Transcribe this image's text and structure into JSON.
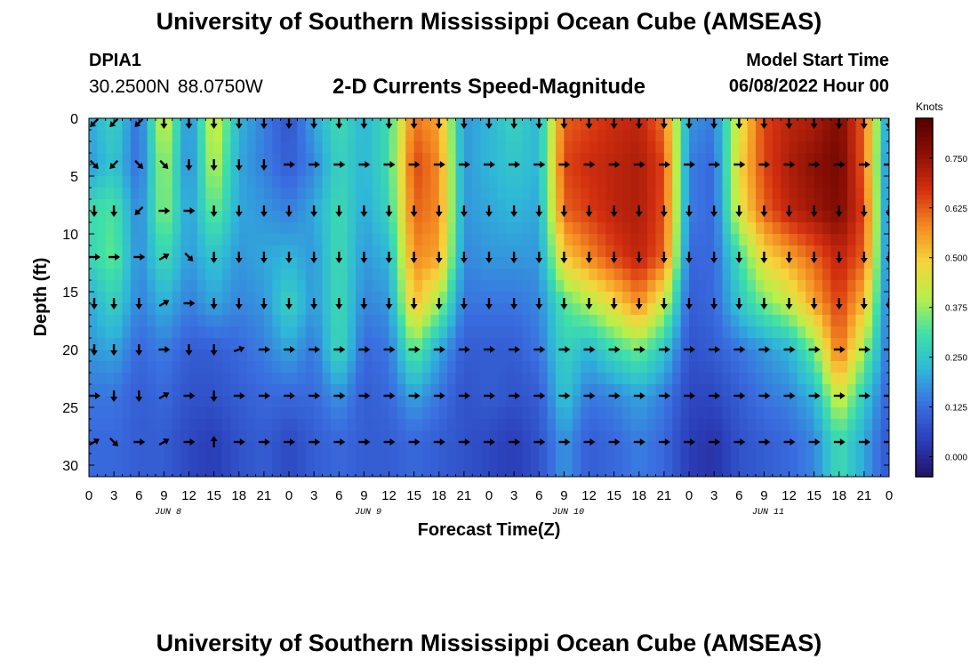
{
  "header": {
    "title": "University of Southern Mississippi Ocean Cube (AMSEAS)",
    "station_id": "DPIA1",
    "station_coords": "30.2500N  88.0750W",
    "subtitle": "2-D Currents Speed-Magnitude",
    "model_start_label": "Model Start Time",
    "model_start_value": "06/08/2022 Hour 00"
  },
  "footer": {
    "title": "University of Southern Mississippi Ocean Cube (AMSEAS)"
  },
  "chart_data": {
    "type": "heatmap",
    "title": "2-D Currents Speed-Magnitude",
    "xlabel": "Forecast Time(Z)",
    "ylabel": "Depth (ft)",
    "x_hours": [
      0,
      3,
      6,
      9,
      12,
      15,
      18,
      21,
      24,
      27,
      30,
      33,
      36,
      39,
      42,
      45,
      48,
      51,
      54,
      57,
      60,
      63,
      66,
      69,
      72,
      75,
      78,
      81,
      84,
      87,
      90,
      93,
      96
    ],
    "x_tick_labels": [
      "0",
      "3",
      "6",
      "9",
      "12",
      "15",
      "18",
      "21",
      "0",
      "3",
      "6",
      "9",
      "12",
      "15",
      "18",
      "21",
      "0",
      "3",
      "6",
      "9",
      "12",
      "15",
      "18",
      "21",
      "0",
      "3",
      "6",
      "9",
      "12",
      "15",
      "18",
      "21",
      "0"
    ],
    "day_labels": [
      {
        "label": "JUN 8",
        "hour": 9.5
      },
      {
        "label": "JUN 9",
        "hour": 33.5
      },
      {
        "label": "JUN 10",
        "hour": 57.5
      },
      {
        "label": "JUN 11",
        "hour": 81.5
      }
    ],
    "depths_ft": [
      0,
      4,
      8,
      12,
      16,
      20,
      24,
      28
    ],
    "y_tick_labels": [
      "0",
      "5",
      "10",
      "15",
      "20",
      "25",
      "30"
    ],
    "y_ticks": [
      0,
      5,
      10,
      15,
      20,
      25,
      30
    ],
    "xlim": [
      0,
      96
    ],
    "ylim": [
      0,
      31
    ],
    "speed_knots": [
      [
        0.2,
        0.28,
        0.12,
        0.45,
        0.15,
        0.45,
        0.22,
        0.15,
        0.08,
        0.2,
        0.3,
        0.22,
        0.3,
        0.6,
        0.55,
        0.18,
        0.22,
        0.28,
        0.22,
        0.62,
        0.65,
        0.68,
        0.7,
        0.6,
        0.18,
        0.15,
        0.45,
        0.65,
        0.7,
        0.72,
        0.78,
        0.62,
        0.15
      ],
      [
        0.18,
        0.25,
        0.12,
        0.4,
        0.15,
        0.42,
        0.2,
        0.15,
        0.1,
        0.16,
        0.28,
        0.22,
        0.3,
        0.65,
        0.58,
        0.18,
        0.22,
        0.25,
        0.22,
        0.65,
        0.68,
        0.7,
        0.72,
        0.65,
        0.15,
        0.12,
        0.48,
        0.65,
        0.72,
        0.76,
        0.8,
        0.62,
        0.12
      ],
      [
        0.3,
        0.32,
        0.15,
        0.38,
        0.18,
        0.35,
        0.2,
        0.18,
        0.15,
        0.2,
        0.3,
        0.2,
        0.28,
        0.62,
        0.58,
        0.18,
        0.2,
        0.22,
        0.2,
        0.62,
        0.66,
        0.7,
        0.72,
        0.64,
        0.15,
        0.12,
        0.45,
        0.62,
        0.7,
        0.74,
        0.78,
        0.65,
        0.12
      ],
      [
        0.28,
        0.34,
        0.16,
        0.3,
        0.18,
        0.25,
        0.18,
        0.2,
        0.22,
        0.18,
        0.3,
        0.18,
        0.22,
        0.58,
        0.55,
        0.16,
        0.18,
        0.18,
        0.18,
        0.5,
        0.58,
        0.65,
        0.7,
        0.62,
        0.12,
        0.12,
        0.3,
        0.48,
        0.55,
        0.62,
        0.7,
        0.62,
        0.12
      ],
      [
        0.2,
        0.28,
        0.15,
        0.22,
        0.15,
        0.2,
        0.16,
        0.18,
        0.28,
        0.18,
        0.3,
        0.16,
        0.18,
        0.52,
        0.38,
        0.14,
        0.14,
        0.14,
        0.16,
        0.32,
        0.4,
        0.48,
        0.58,
        0.42,
        0.1,
        0.12,
        0.25,
        0.35,
        0.42,
        0.55,
        0.66,
        0.52,
        0.12
      ],
      [
        0.18,
        0.2,
        0.12,
        0.15,
        0.1,
        0.1,
        0.12,
        0.15,
        0.2,
        0.14,
        0.3,
        0.12,
        0.14,
        0.35,
        0.2,
        0.1,
        0.1,
        0.1,
        0.14,
        0.28,
        0.22,
        0.3,
        0.35,
        0.25,
        0.08,
        0.1,
        0.14,
        0.18,
        0.22,
        0.35,
        0.62,
        0.38,
        0.12
      ],
      [
        0.14,
        0.14,
        0.1,
        0.12,
        0.08,
        0.08,
        0.1,
        0.12,
        0.12,
        0.12,
        0.18,
        0.1,
        0.12,
        0.2,
        0.14,
        0.08,
        0.1,
        0.08,
        0.1,
        0.25,
        0.14,
        0.16,
        0.2,
        0.15,
        0.06,
        0.06,
        0.1,
        0.14,
        0.16,
        0.22,
        0.45,
        0.26,
        0.1
      ],
      [
        0.12,
        0.12,
        0.1,
        0.1,
        0.06,
        0.04,
        0.08,
        0.1,
        0.06,
        0.1,
        0.12,
        0.1,
        0.1,
        0.12,
        0.1,
        0.08,
        0.06,
        0.04,
        0.08,
        0.18,
        0.1,
        0.12,
        0.15,
        0.12,
        0.04,
        0.02,
        0.08,
        0.1,
        0.12,
        0.16,
        0.3,
        0.2,
        0.08
      ]
    ],
    "colorbar": {
      "label": "Knots",
      "min": -0.05,
      "max": 0.85,
      "ticks": [
        0.0,
        0.125,
        0.25,
        0.375,
        0.5,
        0.625,
        0.75
      ],
      "tick_labels": [
        "0.000",
        "0.125",
        "0.250",
        "0.375",
        "0.500",
        "0.625",
        "0.750"
      ],
      "colors": [
        "#221166",
        "#2a3db8",
        "#3a6ee0",
        "#2fb7d8",
        "#3fe0a8",
        "#b8f04a",
        "#f6d43c",
        "#f48a22",
        "#d43010",
        "#8c1005",
        "#550000"
      ]
    },
    "vector_angles_deg": [
      [
        135,
        135,
        135,
        90,
        90,
        90,
        90,
        90,
        90,
        90,
        90,
        90,
        90,
        90,
        90,
        90,
        90,
        90,
        90,
        90,
        90,
        90,
        90,
        90,
        90,
        90,
        90,
        90,
        90,
        90,
        90,
        90,
        90
      ],
      [
        45,
        135,
        45,
        45,
        90,
        90,
        90,
        90,
        0,
        0,
        0,
        0,
        0,
        0,
        0,
        0,
        0,
        0,
        0,
        0,
        0,
        0,
        0,
        0,
        0,
        0,
        0,
        0,
        0,
        0,
        0,
        0,
        0
      ],
      [
        90,
        90,
        135,
        0,
        0,
        90,
        90,
        90,
        90,
        90,
        90,
        90,
        90,
        90,
        90,
        90,
        90,
        90,
        90,
        90,
        90,
        90,
        90,
        90,
        90,
        90,
        90,
        90,
        90,
        90,
        90,
        90,
        90
      ],
      [
        0,
        0,
        0,
        -30,
        45,
        90,
        90,
        90,
        90,
        90,
        90,
        90,
        90,
        90,
        90,
        90,
        90,
        90,
        90,
        90,
        90,
        90,
        90,
        90,
        90,
        90,
        90,
        90,
        90,
        90,
        90,
        90,
        90
      ],
      [
        90,
        90,
        90,
        -30,
        0,
        90,
        90,
        90,
        90,
        90,
        90,
        90,
        90,
        90,
        90,
        90,
        90,
        90,
        90,
        90,
        90,
        90,
        90,
        90,
        90,
        90,
        90,
        90,
        90,
        90,
        90,
        90,
        90
      ],
      [
        90,
        90,
        90,
        0,
        90,
        90,
        -20,
        0,
        0,
        0,
        0,
        0,
        0,
        0,
        0,
        0,
        0,
        0,
        0,
        0,
        0,
        0,
        0,
        0,
        0,
        0,
        0,
        0,
        0,
        0,
        0,
        0,
        0
      ],
      [
        0,
        90,
        90,
        -30,
        0,
        90,
        0,
        0,
        0,
        0,
        0,
        0,
        0,
        0,
        0,
        0,
        0,
        0,
        0,
        0,
        0,
        0,
        0,
        0,
        0,
        0,
        0,
        0,
        0,
        0,
        0,
        0,
        0
      ],
      [
        -30,
        45,
        0,
        -30,
        0,
        -90,
        0,
        0,
        0,
        0,
        0,
        0,
        0,
        0,
        0,
        0,
        0,
        0,
        0,
        0,
        0,
        0,
        0,
        0,
        0,
        0,
        0,
        0,
        0,
        0,
        0,
        0,
        0
      ]
    ]
  }
}
